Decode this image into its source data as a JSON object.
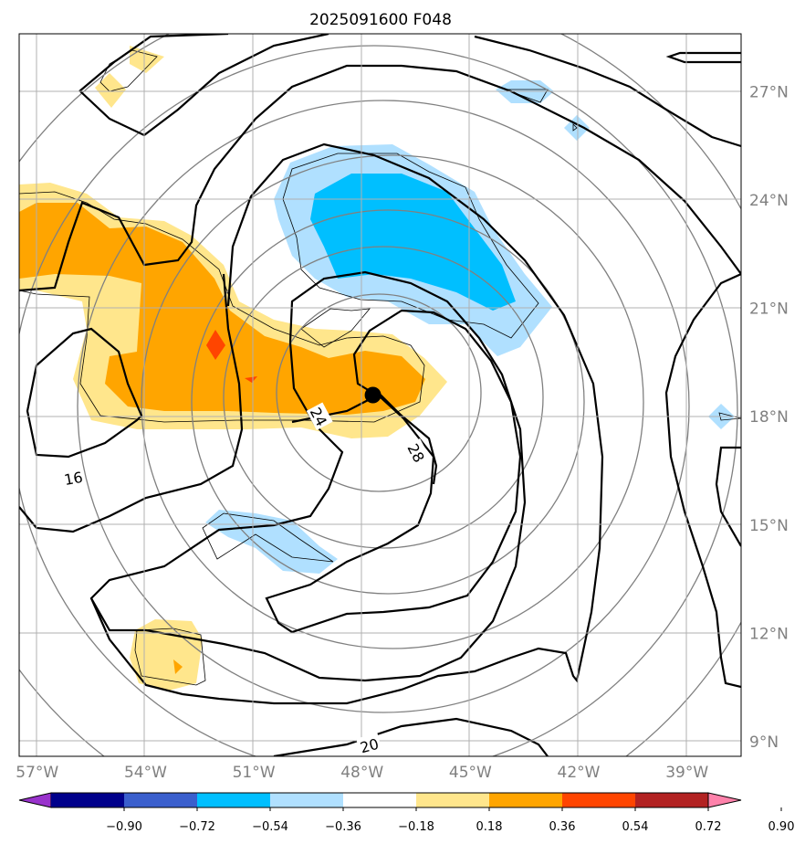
{
  "chart_data": {
    "type": "map-contour",
    "title": "2025091600 F048",
    "x_ticks": [
      {
        "label": "57°W",
        "lon": -57
      },
      {
        "label": "54°W",
        "lon": -54
      },
      {
        "label": "51°W",
        "lon": -51
      },
      {
        "label": "48°W",
        "lon": -48
      },
      {
        "label": "45°W",
        "lon": -45
      },
      {
        "label": "42°W",
        "lon": -42
      },
      {
        "label": "39°W",
        "lon": -39
      }
    ],
    "y_ticks": [
      {
        "label": "27°N",
        "lat": 27
      },
      {
        "label": "24°N",
        "lat": 24
      },
      {
        "label": "21°N",
        "lat": 21
      },
      {
        "label": "18°N",
        "lat": 18
      },
      {
        "label": "15°N",
        "lat": 15
      },
      {
        "label": "12°N",
        "lat": 12
      },
      {
        "label": "9°N",
        "lat": 9
      }
    ],
    "xlim": [
      -57.5,
      -37.5
    ],
    "ylim": [
      8.6,
      28.6
    ],
    "grid": true,
    "center_marker": {
      "lon": -47.7,
      "lat": 18.6
    },
    "contour_labels": [
      {
        "text": "16",
        "lon": -56.0,
        "lat": 16.3,
        "angle": -10
      },
      {
        "text": "20",
        "lon": -47.8,
        "lat": 8.9,
        "angle": -15
      },
      {
        "text": "24",
        "lon": -49.2,
        "lat": 18.0,
        "angle": 62
      },
      {
        "text": "28",
        "lon": -46.5,
        "lat": 17.0,
        "angle": 62
      }
    ],
    "colorbar": {
      "levels": [
        "−0.90",
        "−0.72",
        "−0.54",
        "−0.36",
        "−0.18",
        "0.18",
        "0.36",
        "0.54",
        "0.72",
        "0.90"
      ],
      "colors": [
        "#9932cc",
        "#00008b",
        "#3a5fcd",
        "#00bfff",
        "#b0e0ff",
        "#ffffff",
        "#ffe68c",
        "#ffa500",
        "#ff4500",
        "#b22222",
        "#ff82ab"
      ],
      "extend": "both"
    }
  }
}
